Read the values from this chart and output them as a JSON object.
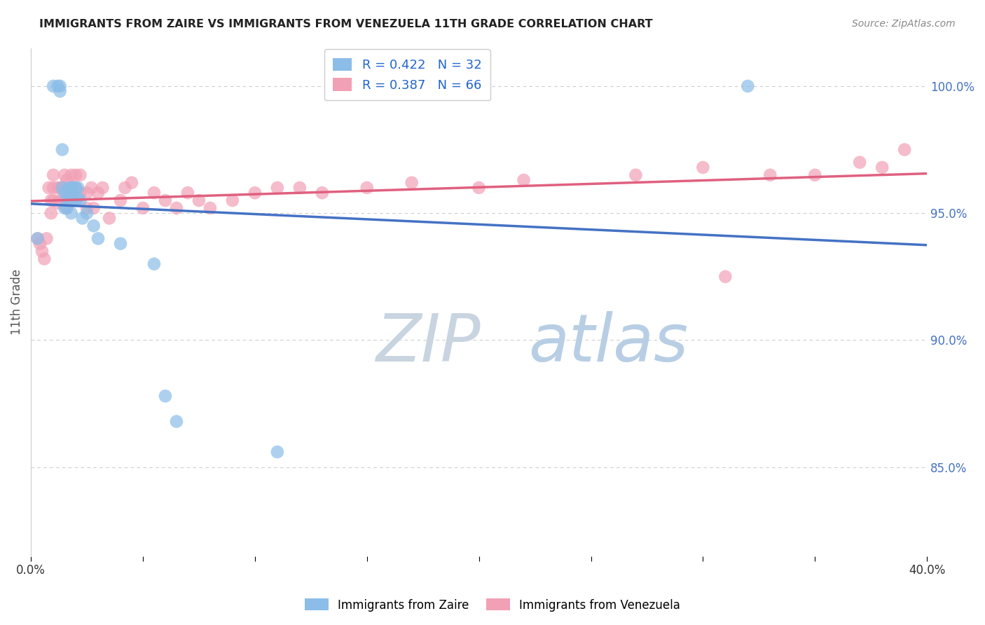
{
  "title": "IMMIGRANTS FROM ZAIRE VS IMMIGRANTS FROM VENEZUELA 11TH GRADE CORRELATION CHART",
  "source_text": "Source: ZipAtlas.com",
  "ylabel": "11th Grade",
  "right_yticks": [
    "100.0%",
    "95.0%",
    "90.0%",
    "85.0%"
  ],
  "right_ytick_vals": [
    1.0,
    0.95,
    0.9,
    0.85
  ],
  "R_zaire": 0.422,
  "N_zaire": 32,
  "R_venezuela": 0.387,
  "N_venezuela": 66,
  "color_zaire": "#8BBDE8",
  "color_venezuela": "#F2A0B5",
  "color_zaire_line": "#4472C4",
  "color_venezuela_line": "#E06080",
  "color_right_axis": "#4472C4",
  "watermark_zip_color": "#C8D8E8",
  "watermark_atlas_color": "#B8D0E8",
  "background_color": "#FFFFFF",
  "ylim_low": 0.815,
  "ylim_high": 1.015,
  "xlim_low": 0.0,
  "xlim_high": 0.4,
  "zaire_x": [
    0.003,
    0.01,
    0.012,
    0.013,
    0.013,
    0.014,
    0.014,
    0.015,
    0.015,
    0.016,
    0.016,
    0.017,
    0.017,
    0.018,
    0.018,
    0.018,
    0.019,
    0.02,
    0.02,
    0.021,
    0.021,
    0.022,
    0.023,
    0.025,
    0.028,
    0.03,
    0.04,
    0.055,
    0.06,
    0.065,
    0.11,
    0.32
  ],
  "zaire_y": [
    0.94,
    1.0,
    1.0,
    1.0,
    0.998,
    0.975,
    0.96,
    0.958,
    0.952,
    0.958,
    0.952,
    0.96,
    0.955,
    0.96,
    0.956,
    0.95,
    0.96,
    0.96,
    0.955,
    0.96,
    0.956,
    0.955,
    0.948,
    0.95,
    0.945,
    0.94,
    0.938,
    0.93,
    0.878,
    0.868,
    0.856,
    1.0
  ],
  "venezuela_x": [
    0.003,
    0.004,
    0.005,
    0.006,
    0.007,
    0.008,
    0.009,
    0.009,
    0.01,
    0.01,
    0.01,
    0.012,
    0.012,
    0.013,
    0.013,
    0.014,
    0.015,
    0.015,
    0.015,
    0.016,
    0.016,
    0.016,
    0.017,
    0.018,
    0.018,
    0.018,
    0.019,
    0.02,
    0.02,
    0.02,
    0.022,
    0.022,
    0.025,
    0.025,
    0.027,
    0.028,
    0.03,
    0.032,
    0.035,
    0.04,
    0.042,
    0.045,
    0.05,
    0.055,
    0.06,
    0.065,
    0.07,
    0.075,
    0.08,
    0.09,
    0.1,
    0.11,
    0.12,
    0.13,
    0.15,
    0.17,
    0.2,
    0.22,
    0.27,
    0.3,
    0.31,
    0.33,
    0.35,
    0.37,
    0.38,
    0.39
  ],
  "venezuela_y": [
    0.94,
    0.938,
    0.935,
    0.932,
    0.94,
    0.96,
    0.955,
    0.95,
    0.965,
    0.96,
    0.955,
    0.96,
    0.954,
    0.96,
    0.955,
    0.96,
    0.965,
    0.96,
    0.955,
    0.963,
    0.958,
    0.952,
    0.955,
    0.965,
    0.96,
    0.955,
    0.96,
    0.965,
    0.96,
    0.955,
    0.965,
    0.958,
    0.958,
    0.952,
    0.96,
    0.952,
    0.958,
    0.96,
    0.948,
    0.955,
    0.96,
    0.962,
    0.952,
    0.958,
    0.955,
    0.952,
    0.958,
    0.955,
    0.952,
    0.955,
    0.958,
    0.96,
    0.96,
    0.958,
    0.96,
    0.962,
    0.96,
    0.963,
    0.965,
    0.968,
    0.925,
    0.965,
    0.965,
    0.97,
    0.968,
    0.975
  ]
}
